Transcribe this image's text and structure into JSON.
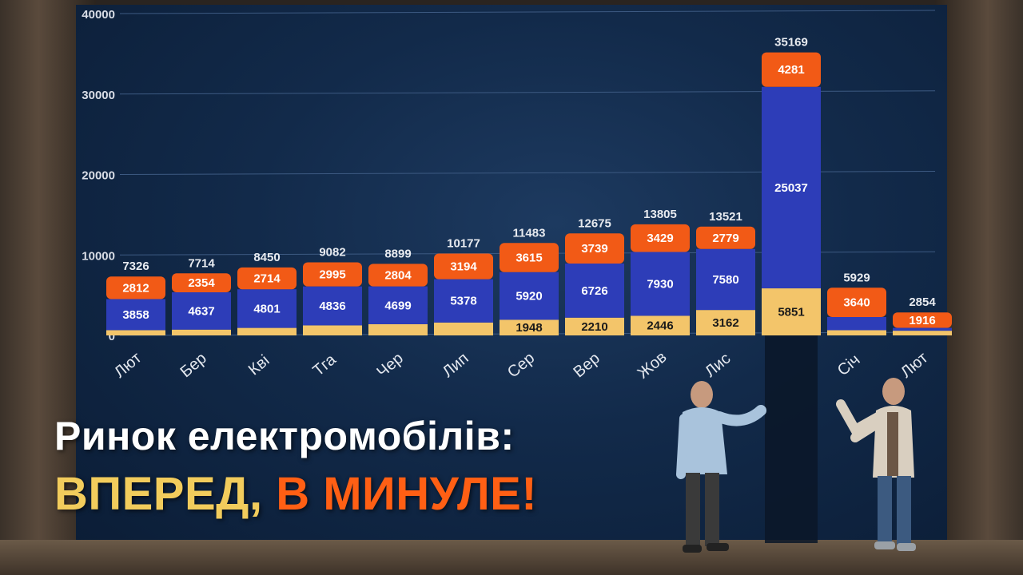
{
  "headline": {
    "line1": "Ринок електромобілів:",
    "line2_part1": "ВПЕРЕД,",
    "line2_part2": "В МИНУЛЕ!"
  },
  "colors": {
    "orange": "#f25a16",
    "blue": "#2d3db8",
    "yellow": "#f3c56a",
    "headline_yellow": "#f2cc5c",
    "headline_orange": "#ff5f14"
  },
  "chart_data": {
    "type": "bar",
    "stacked": true,
    "categories": [
      "Лют",
      "Бер",
      "Кві",
      "Тга",
      "Чер",
      "Лип",
      "Сер",
      "Вер",
      "Жов",
      "Лис",
      "",
      "Січ",
      "Лют"
    ],
    "totals": [
      7326,
      7714,
      8450,
      9082,
      8899,
      10177,
      11483,
      12675,
      13805,
      13521,
      35169,
      5929,
      2854
    ],
    "series": [
      {
        "color": "#f3c56a",
        "values": [
          656,
          723,
          935,
          1251,
          1396,
          1605,
          1948,
          2210,
          2446,
          3162,
          5851,
          647,
          585
        ],
        "labels": [
          "",
          "",
          "",
          "",
          "",
          "",
          "1948",
          "2210",
          "2446",
          "3162",
          "5851",
          "",
          ""
        ]
      },
      {
        "color": "#2d3db8",
        "values": [
          3858,
          4637,
          4801,
          4836,
          4699,
          5378,
          5920,
          6726,
          7930,
          7580,
          25037,
          1642,
          353
        ],
        "labels": [
          "3858",
          "4637",
          "4801",
          "4836",
          "4699",
          "5378",
          "5920",
          "6726",
          "7930",
          "7580",
          "25037",
          "",
          ""
        ]
      },
      {
        "color": "#f25a16",
        "values": [
          2812,
          2354,
          2714,
          2995,
          2804,
          3194,
          3615,
          3739,
          3429,
          2779,
          4281,
          3640,
          1916
        ],
        "labels": [
          "2812",
          "2354",
          "2714",
          "2995",
          "2804",
          "3194",
          "3615",
          "3739",
          "3429",
          "2779",
          "4281",
          "3640",
          "1916"
        ]
      }
    ],
    "ylim": [
      0,
      40000
    ],
    "yticks": [
      0,
      10000,
      20000,
      30000,
      40000
    ],
    "grid": true
  }
}
